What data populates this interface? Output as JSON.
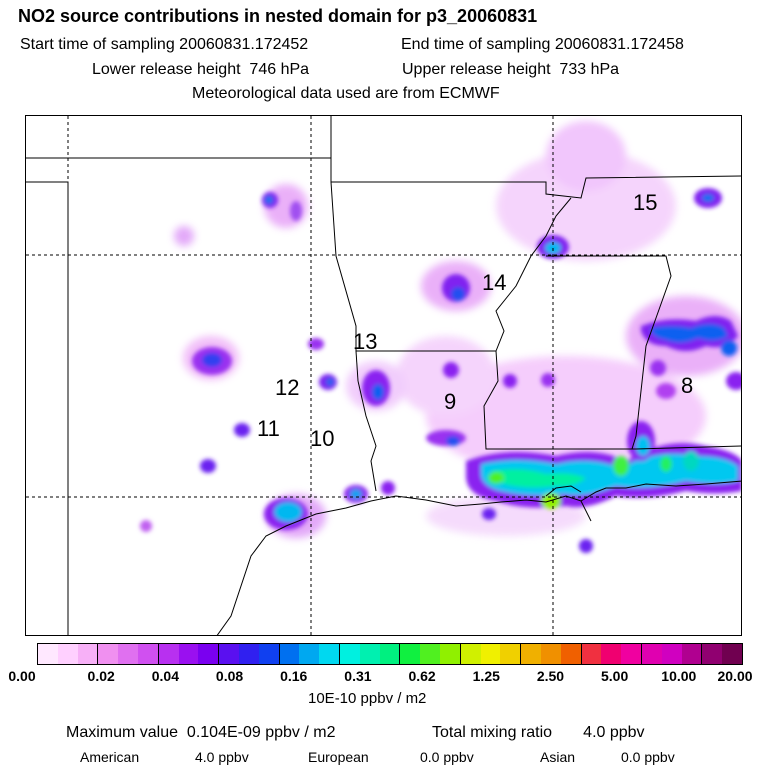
{
  "header": {
    "title": "NO2 source contributions in nested domain for p3_20060831",
    "start_time": "Start time of sampling 20060831.172452",
    "end_time": "End time of sampling 20060831.172458",
    "lower_release": "Lower release height  746 hPa",
    "upper_release": "Upper release height  733 hPa",
    "met_source": "Meteorological data used are from ECMWF"
  },
  "map": {
    "region_labels": [
      "15",
      "14",
      "13",
      "12",
      "11",
      "10",
      "9",
      "8"
    ]
  },
  "colorbar": {
    "colors": [
      "#ffe8ff",
      "#ffd0ff",
      "#f7b0f7",
      "#f090f0",
      "#e070f0",
      "#d050f0",
      "#b830f0",
      "#9a10f0",
      "#7a00f0",
      "#5a10f0",
      "#3020f0",
      "#1040f0",
      "#0070f0",
      "#00a8f0",
      "#00d8f0",
      "#00f0e0",
      "#00f0b0",
      "#00f080",
      "#10f040",
      "#50f020",
      "#90f000",
      "#d0f000",
      "#f0f000",
      "#f0d000",
      "#f0b000",
      "#f09000",
      "#f06000",
      "#f03040",
      "#f00070",
      "#f000a0",
      "#e000b0",
      "#d000c0",
      "#b00090",
      "#900070",
      "#700050"
    ],
    "ticks": [
      "0.00",
      "0.02",
      "0.04",
      "0.08",
      "0.16",
      "0.31",
      "0.62",
      "1.25",
      "2.50",
      "5.00",
      "10.00",
      "20.00"
    ],
    "unit": "10E-10 ppbv / m2"
  },
  "footer": {
    "max_value": "Maximum value  0.104E-09 ppbv / m2",
    "total_mixing": "Total mixing ratio       4.0 ppbv",
    "american_label": "American",
    "american_value": "4.0 ppbv",
    "european_label": "European",
    "european_value": "0.0 ppbv",
    "asian_label": "Asian",
    "asian_value": "0.0 ppbv"
  }
}
